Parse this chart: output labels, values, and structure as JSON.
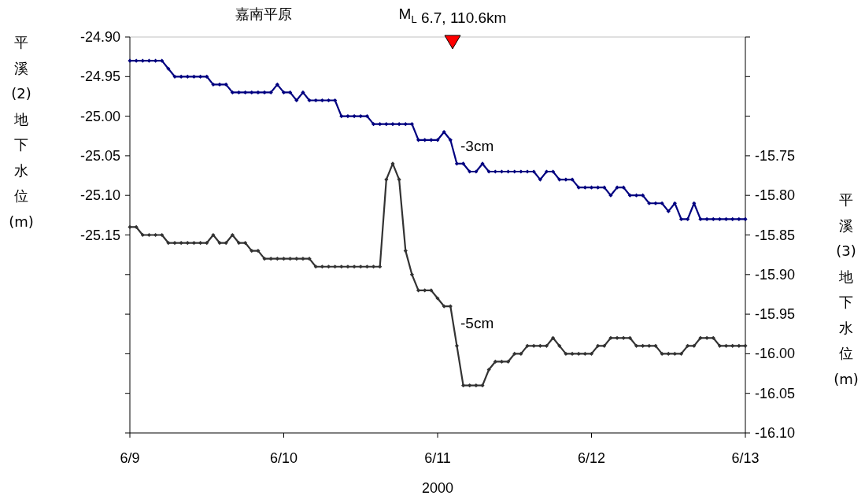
{
  "chart_data": {
    "type": "line",
    "title": "嘉南平原",
    "xlabel": "2000",
    "ylabel": "平溪(2)地下水位(m)",
    "y2label": "平溪(3)地下水位(m)",
    "x": [
      "2000-06-09T00:00",
      "2000-06-09T01:00",
      "2000-06-09T02:00",
      "2000-06-09T03:00",
      "2000-06-09T04:00",
      "2000-06-09T05:00",
      "2000-06-09T06:00",
      "2000-06-09T07:00",
      "2000-06-09T08:00",
      "2000-06-09T09:00",
      "2000-06-09T10:00",
      "2000-06-09T11:00",
      "2000-06-09T12:00",
      "2000-06-09T13:00",
      "2000-06-09T14:00",
      "2000-06-09T15:00",
      "2000-06-09T16:00",
      "2000-06-09T17:00",
      "2000-06-09T18:00",
      "2000-06-09T19:00",
      "2000-06-09T20:00",
      "2000-06-09T21:00",
      "2000-06-09T22:00",
      "2000-06-09T23:00",
      "2000-06-10T00:00",
      "2000-06-10T01:00",
      "2000-06-10T02:00",
      "2000-06-10T03:00",
      "2000-06-10T04:00",
      "2000-06-10T05:00",
      "2000-06-10T06:00",
      "2000-06-10T07:00",
      "2000-06-10T08:00",
      "2000-06-10T09:00",
      "2000-06-10T10:00",
      "2000-06-10T11:00",
      "2000-06-10T12:00",
      "2000-06-10T13:00",
      "2000-06-10T14:00",
      "2000-06-10T15:00",
      "2000-06-10T16:00",
      "2000-06-10T17:00",
      "2000-06-10T18:00",
      "2000-06-10T19:00",
      "2000-06-10T20:00",
      "2000-06-10T21:00",
      "2000-06-10T22:00",
      "2000-06-10T23:00",
      "2000-06-11T00:00",
      "2000-06-11T01:00",
      "2000-06-11T02:00",
      "2000-06-11T03:00",
      "2000-06-11T04:00",
      "2000-06-11T05:00",
      "2000-06-11T06:00",
      "2000-06-11T07:00",
      "2000-06-11T08:00",
      "2000-06-11T09:00",
      "2000-06-11T10:00",
      "2000-06-11T11:00",
      "2000-06-11T12:00",
      "2000-06-11T13:00",
      "2000-06-11T14:00",
      "2000-06-11T15:00",
      "2000-06-11T16:00",
      "2000-06-11T17:00",
      "2000-06-11T18:00",
      "2000-06-11T19:00",
      "2000-06-11T20:00",
      "2000-06-11T21:00",
      "2000-06-11T22:00",
      "2000-06-11T23:00",
      "2000-06-12T00:00",
      "2000-06-12T01:00",
      "2000-06-12T02:00",
      "2000-06-12T03:00",
      "2000-06-12T04:00",
      "2000-06-12T05:00",
      "2000-06-12T06:00",
      "2000-06-12T07:00",
      "2000-06-12T08:00",
      "2000-06-12T09:00",
      "2000-06-12T10:00",
      "2000-06-12T11:00",
      "2000-06-12T12:00",
      "2000-06-12T13:00",
      "2000-06-12T14:00",
      "2000-06-12T15:00",
      "2000-06-12T16:00",
      "2000-06-12T17:00",
      "2000-06-12T18:00",
      "2000-06-12T19:00",
      "2000-06-12T20:00",
      "2000-06-12T21:00",
      "2000-06-12T22:00",
      "2000-06-12T23:00",
      "2000-06-13T00:00"
    ],
    "series": [
      {
        "color": "#000080",
        "values": [
          -24.93,
          -24.93,
          -24.93,
          -24.93,
          -24.93,
          -24.93,
          -24.94,
          -24.95,
          -24.95,
          -24.95,
          -24.95,
          -24.95,
          -24.95,
          -24.96,
          -24.96,
          -24.96,
          -24.97,
          -24.97,
          -24.97,
          -24.97,
          -24.97,
          -24.97,
          -24.97,
          -24.96,
          -24.97,
          -24.97,
          -24.98,
          -24.97,
          -24.98,
          -24.98,
          -24.98,
          -24.98,
          -24.98,
          -25.0,
          -25.0,
          -25.0,
          -25.0,
          -25.0,
          -25.01,
          -25.01,
          -25.01,
          -25.01,
          -25.01,
          -25.01,
          -25.01,
          -25.03,
          -25.03,
          -25.03,
          -25.03,
          -25.02,
          -25.03,
          -25.06,
          -25.06,
          -25.07,
          -25.07,
          -25.06,
          -25.07,
          -25.07,
          -25.07,
          -25.07,
          -25.07,
          -25.07,
          -25.07,
          -25.07,
          -25.08,
          -25.07,
          -25.07,
          -25.08,
          -25.08,
          -25.08,
          -25.09,
          -25.09,
          -25.09,
          -25.09,
          -25.09,
          -25.1,
          -25.09,
          -25.09,
          -25.1,
          -25.1,
          -25.1,
          -25.11,
          -25.11,
          -25.11,
          -25.12,
          -25.11,
          -25.13,
          -25.13,
          -25.11,
          -25.13,
          -25.13,
          -25.13,
          -25.13,
          -25.13,
          -25.13,
          -25.13,
          -25.13
        ]
      },
      {
        "color": "#333333",
        "axis": "y2",
        "values": [
          -15.84,
          -15.84,
          -15.85,
          -15.85,
          -15.85,
          -15.85,
          -15.86,
          -15.86,
          -15.86,
          -15.86,
          -15.86,
          -15.86,
          -15.86,
          -15.85,
          -15.86,
          -15.86,
          -15.85,
          -15.86,
          -15.86,
          -15.87,
          -15.87,
          -15.88,
          -15.88,
          -15.88,
          -15.88,
          -15.88,
          -15.88,
          -15.88,
          -15.88,
          -15.89,
          -15.89,
          -15.89,
          -15.89,
          -15.89,
          -15.89,
          -15.89,
          -15.89,
          -15.89,
          -15.89,
          -15.89,
          -15.78,
          -15.76,
          -15.78,
          -15.87,
          -15.9,
          -15.92,
          -15.92,
          -15.92,
          -15.93,
          -15.94,
          -15.94,
          -15.99,
          -16.04,
          -16.04,
          -16.04,
          -16.04,
          -16.02,
          -16.01,
          -16.01,
          -16.01,
          -16.0,
          -16.0,
          -15.99,
          -15.99,
          -15.99,
          -15.99,
          -15.98,
          -15.99,
          -16.0,
          -16.0,
          -16.0,
          -16.0,
          -16.0,
          -15.99,
          -15.99,
          -15.98,
          -15.98,
          -15.98,
          -15.98,
          -15.99,
          -15.99,
          -15.99,
          -15.99,
          -16.0,
          -16.0,
          -16.0,
          -16.0,
          -15.99,
          -15.99,
          -15.98,
          -15.98,
          -15.98,
          -15.99,
          -15.99,
          -15.99,
          -15.99,
          -15.99
        ]
      }
    ],
    "xlim": [
      "2000-06-09",
      "2000-06-13"
    ],
    "xticks": [
      {
        "value": "2000-06-09",
        "label": "6/9"
      },
      {
        "value": "2000-06-10",
        "label": "6/10"
      },
      {
        "value": "2000-06-11",
        "label": "6/11"
      },
      {
        "value": "2000-06-12",
        "label": "6/12"
      },
      {
        "value": "2000-06-13",
        "label": "6/13"
      }
    ],
    "ylim": [
      -25.4,
      -24.9
    ],
    "yticks": [
      {
        "value": -24.9,
        "label": "-24.90"
      },
      {
        "value": -24.95,
        "label": "-24.95"
      },
      {
        "value": -25.0,
        "label": "-25.00"
      },
      {
        "value": -25.05,
        "label": "-25.05"
      },
      {
        "value": -25.1,
        "label": "-25.10"
      },
      {
        "value": -25.15,
        "label": "-25.15"
      },
      {
        "value": -25.2,
        "label": null
      },
      {
        "value": -25.25,
        "label": null
      },
      {
        "value": -25.3,
        "label": null
      },
      {
        "value": -25.35,
        "label": null
      },
      {
        "value": -25.4,
        "label": null
      }
    ],
    "y2lim": [
      -16.1,
      -15.6
    ],
    "y2ticks": [
      {
        "value": -15.6,
        "label": null
      },
      {
        "value": -15.65,
        "label": null
      },
      {
        "value": -15.7,
        "label": null
      },
      {
        "value": -15.75,
        "label": "-15.75"
      },
      {
        "value": -15.8,
        "label": "-15.80"
      },
      {
        "value": -15.85,
        "label": "-15.85"
      },
      {
        "value": -15.9,
        "label": "-15.90"
      },
      {
        "value": -15.95,
        "label": "-15.95"
      },
      {
        "value": -16.0,
        "label": "-16.00"
      },
      {
        "value": -16.05,
        "label": "-16.05"
      },
      {
        "value": -16.1,
        "label": "-16.10"
      }
    ],
    "annotations": [
      "M$_{L}$ 6.7, 110.6km",
      "-3cm",
      "-5cm"
    ],
    "grid": false,
    "marker": "diamond",
    "line_style": "solid"
  }
}
